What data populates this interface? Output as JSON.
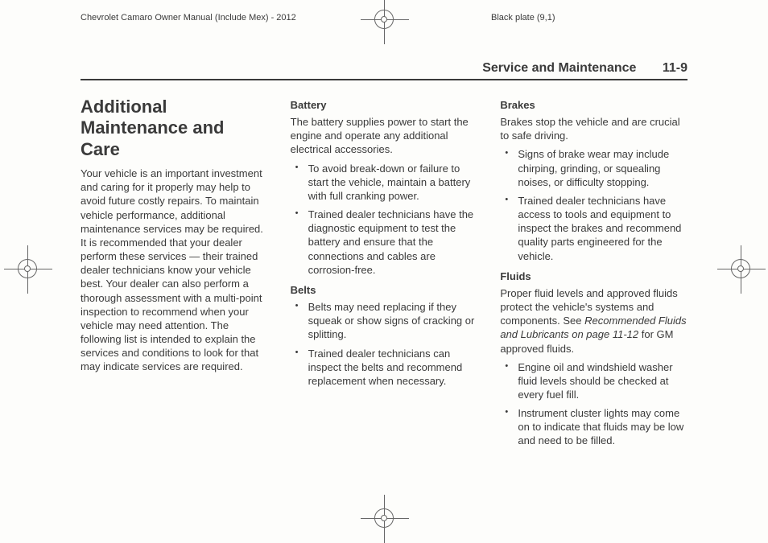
{
  "header": {
    "left": "Chevrolet Camaro Owner Manual (Include Mex) - 2012",
    "right": "Black plate (9,1)"
  },
  "section": {
    "title": "Service and Maintenance",
    "page": "11-9"
  },
  "col1": {
    "h1": "Additional Maintenance and Care",
    "intro": "Your vehicle is an important investment and caring for it properly may help to avoid future costly repairs. To maintain vehicle performance, additional maintenance services may be required. It is recommended that your dealer perform these services — their trained dealer technicians know your vehicle best. Your dealer can also perform a thorough assessment with a multi-point inspection to recommend when your vehicle may need attention. The following list is intended to explain the services and conditions to look for that may indicate services are required."
  },
  "col2": {
    "battery": {
      "head": "Battery",
      "para": "The battery supplies power to start the engine and operate any additional electrical accessories.",
      "items": [
        "To avoid break-down or failure to start the vehicle, maintain a battery with full cranking power.",
        "Trained dealer technicians have the diagnostic equipment to test the battery and ensure that the connections and cables are corrosion-free."
      ]
    },
    "belts": {
      "head": "Belts",
      "items": [
        "Belts may need replacing if they squeak or show signs of cracking or splitting.",
        "Trained dealer technicians can inspect the belts and recommend replacement when necessary."
      ]
    }
  },
  "col3": {
    "brakes": {
      "head": "Brakes",
      "para": "Brakes stop the vehicle and are crucial to safe driving.",
      "items": [
        "Signs of brake wear may include chirping, grinding, or squealing noises, or difficulty stopping.",
        "Trained dealer technicians have access to tools and equipment to inspect the brakes and recommend quality parts engineered for the vehicle."
      ]
    },
    "fluids": {
      "head": "Fluids",
      "para_a": "Proper fluid levels and approved fluids protect the vehicle's systems and components. See ",
      "para_ref": "Recommended Fluids and Lubricants on page 11-12",
      "para_b": " for GM approved fluids.",
      "items": [
        "Engine oil and windshield washer fluid levels should be checked at every fuel fill.",
        "Instrument cluster lights may come on to indicate that fluids may be low and need to be filled."
      ]
    }
  }
}
